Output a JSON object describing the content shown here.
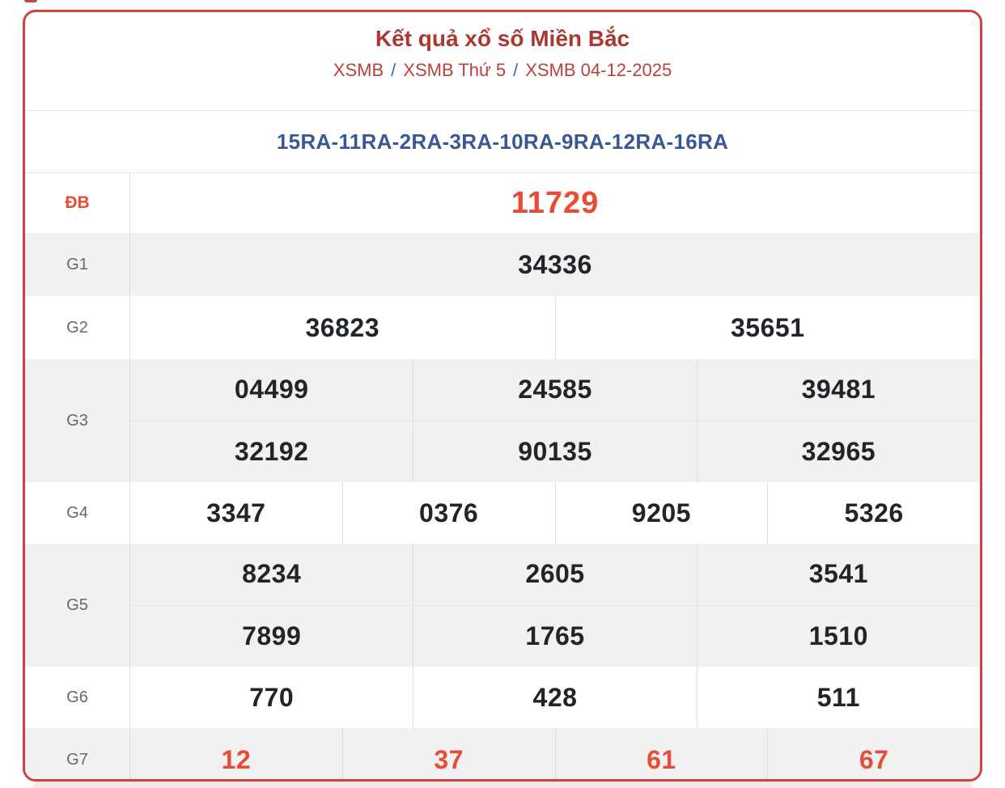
{
  "header": {
    "title": "Kết quả xổ số Miền Bắc",
    "breadcrumb": [
      {
        "label": "XSMB"
      },
      {
        "label": "XSMB Thứ 5"
      },
      {
        "label": "XSMB 04-12-2025"
      }
    ],
    "separator": "/"
  },
  "ra_line": "15RA-11RA-2RA-3RA-10RA-9RA-12RA-16RA",
  "table": {
    "rows": [
      {
        "key": "db",
        "label": "ĐB",
        "accent_label": true,
        "accent_values": true,
        "big": true,
        "shade": false,
        "lines": [
          [
            "11729"
          ]
        ]
      },
      {
        "key": "g1",
        "label": "G1",
        "shade": true,
        "lines": [
          [
            "34336"
          ]
        ]
      },
      {
        "key": "g2",
        "label": "G2",
        "shade": false,
        "lines": [
          [
            "36823",
            "35651"
          ]
        ]
      },
      {
        "key": "g3",
        "label": "G3",
        "shade": true,
        "lines": [
          [
            "04499",
            "24585",
            "39481"
          ],
          [
            "32192",
            "90135",
            "32965"
          ]
        ]
      },
      {
        "key": "g4",
        "label": "G4",
        "shade": false,
        "lines": [
          [
            "3347",
            "0376",
            "9205",
            "5326"
          ]
        ]
      },
      {
        "key": "g5",
        "label": "G5",
        "shade": true,
        "lines": [
          [
            "8234",
            "2605",
            "3541"
          ],
          [
            "7899",
            "1765",
            "1510"
          ]
        ]
      },
      {
        "key": "g6",
        "label": "G6",
        "shade": false,
        "lines": [
          [
            "770",
            "428",
            "511"
          ]
        ]
      },
      {
        "key": "g7",
        "label": "G7",
        "shade": true,
        "accent_values": true,
        "lines": [
          [
            "12",
            "37",
            "61",
            "67"
          ]
        ]
      }
    ]
  },
  "colors": {
    "border_red": "#d0423c",
    "title_red": "#a93831",
    "link_red": "#b8423b",
    "slash_blue": "#2e6da4",
    "ra_blue": "#3a5795",
    "accent": "#e84c37",
    "number_dark": "#212529",
    "label_gray": "#686868",
    "row_shade": "#f1f1f1",
    "divider": "#dfdfdf",
    "divider_light": "#e6e6e6",
    "next_pink": "#f9e7e5"
  }
}
